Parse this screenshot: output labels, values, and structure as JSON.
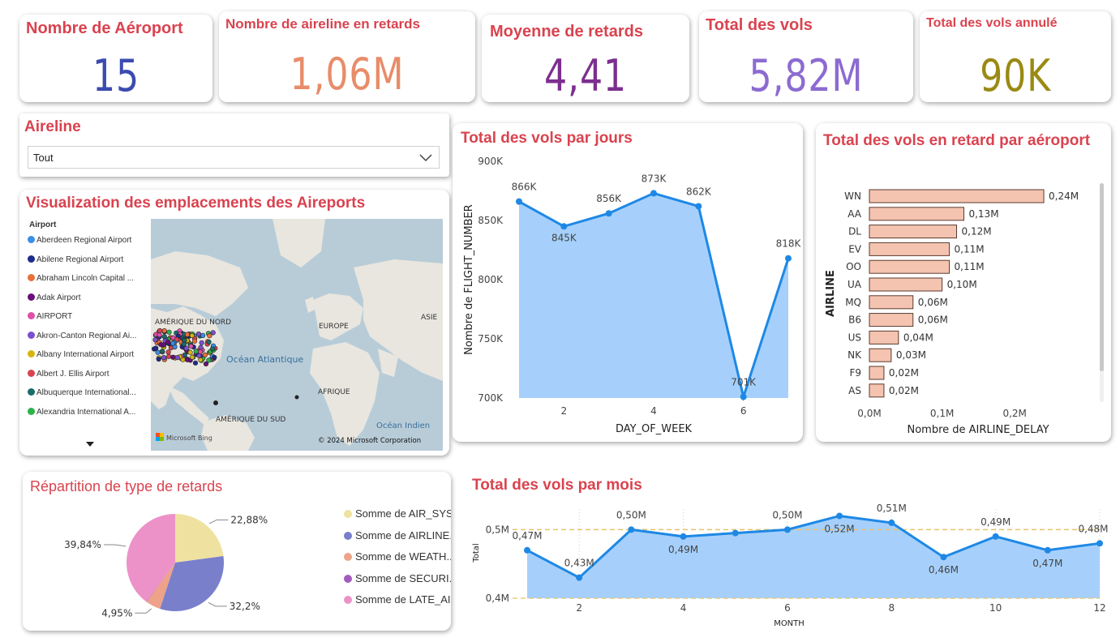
{
  "kpis": [
    {
      "title": "Nombre de Aéroport",
      "value": "15",
      "color": "#3b4bb0"
    },
    {
      "title": "Nombre de aireline en retards",
      "value": "1,06M",
      "color": "#e88c6a"
    },
    {
      "title": "Moyenne de retards",
      "value": "4,41",
      "color": "#7c2f8f"
    },
    {
      "title": "Total des vols",
      "value": "5,82M",
      "color": "#8c6bd1"
    },
    {
      "title": "Total des vols annulé",
      "value": "90K",
      "color": "#9a8a14"
    }
  ],
  "slicer": {
    "title": "Aireline",
    "selected": "Tout"
  },
  "map": {
    "title": "Visualization des emplacements des Aireports",
    "legend_title": "Airport",
    "legend": [
      {
        "label": "Aberdeen Regional Airport",
        "color": "#3a8ee6"
      },
      {
        "label": "Abilene Regional Airport",
        "color": "#1f2a8c"
      },
      {
        "label": "Abraham Lincoln Capital ...",
        "color": "#e8703a"
      },
      {
        "label": "Adak Airport",
        "color": "#6a0f7a"
      },
      {
        "label": "AIRPORT",
        "color": "#e04fa8"
      },
      {
        "label": "Akron-Canton Regional Ai...",
        "color": "#7b4fd1"
      },
      {
        "label": "Albany International Airport",
        "color": "#d9b40f"
      },
      {
        "label": "Albert J. Ellis Airport",
        "color": "#d9434f"
      },
      {
        "label": "Albuquerque International...",
        "color": "#1a6b6b"
      },
      {
        "label": "Alexandria International A...",
        "color": "#2bb34a"
      }
    ],
    "labels": {
      "na": "AMÉRIQUE DU NORD",
      "eu": "EUROPE",
      "asia": "ASIE",
      "atl": "Océan Atlantique",
      "af": "AFRIQUE",
      "sa": "AMÉRIQUE DU SUD",
      "ind": "Océan Indien",
      "bing": "Microsoft Bing",
      "copyright": "© 2024 Microsoft Corporation"
    }
  },
  "colors": {
    "title": "#d9434f",
    "area": "#a6d0fb",
    "line": "#1e88e5",
    "bar": "#f4c4b0",
    "bar_border": "#5a3a30",
    "ref": "#e8c26a"
  },
  "chart_data": [
    {
      "type": "area",
      "title": "Total des vols par jours",
      "xlabel": "DAY_OF_WEEK",
      "ylabel": "Nombre de FLIGHT_NUMBER",
      "x": [
        1,
        2,
        3,
        4,
        5,
        6,
        7
      ],
      "values": [
        866000,
        845000,
        856000,
        873000,
        862000,
        701000,
        818000
      ],
      "data_labels": [
        "866K",
        "845K",
        "856K",
        "873K",
        "862K",
        "701K",
        "818K"
      ],
      "ylim": [
        700000,
        900000
      ],
      "yticks": [
        "700K",
        "750K",
        "800K",
        "850K",
        "900K"
      ],
      "xticks": [
        "2",
        "4",
        "6"
      ],
      "grid": false
    },
    {
      "type": "bar",
      "orientation": "horizontal",
      "title": "Total des vols en retard par aéroport",
      "xlabel": "Nombre de AIRLINE_DELAY",
      "ylabel": "AIRLINE",
      "categories": [
        "WN",
        "AA",
        "DL",
        "EV",
        "OO",
        "UA",
        "MQ",
        "B6",
        "US",
        "NK",
        "F9",
        "AS"
      ],
      "values": [
        0.24,
        0.13,
        0.12,
        0.11,
        0.11,
        0.1,
        0.06,
        0.06,
        0.04,
        0.03,
        0.02,
        0.02
      ],
      "data_labels": [
        "0,24M",
        "0,13M",
        "0,12M",
        "0,11M",
        "0,11M",
        "0,10M",
        "0,06M",
        "0,06M",
        "0,04M",
        "0,03M",
        "0,02M",
        "0,02M"
      ],
      "xlim": [
        0,
        0.25
      ],
      "xticks": [
        "0,0M",
        "0,1M",
        "0,2M"
      ]
    },
    {
      "type": "pie",
      "title": "Répartition de type de retards",
      "categories": [
        "Somme de AIR_SYS...",
        "Somme de AIRLINE...",
        "Somme de WEATH...",
        "Somme de SECURI...",
        "Somme de LATE_AI..."
      ],
      "values": [
        22.88,
        32.2,
        4.95,
        0.13,
        39.84
      ],
      "data_labels": [
        "22,88%",
        "32,2%",
        "4,95%",
        "",
        "39,84%"
      ],
      "colors": [
        "#efe2a0",
        "#7a7fcc",
        "#eea28a",
        "#a35bbf",
        "#ec92c8"
      ]
    },
    {
      "type": "area",
      "title": "Total des vols par mois",
      "xlabel": "MONTH",
      "ylabel": "Total",
      "x": [
        1,
        2,
        3,
        4,
        5,
        6,
        7,
        8,
        9,
        10,
        11,
        12
      ],
      "values": [
        0.47,
        0.43,
        0.5,
        0.49,
        0.495,
        0.5,
        0.52,
        0.51,
        0.46,
        0.49,
        0.47,
        0.48
      ],
      "data_labels": [
        "0,47M",
        "0,43M",
        "0,50M",
        "0,49M",
        "",
        "0,50M",
        "0,52M",
        "0,51M",
        "0,46M",
        "0,49M",
        "0,47M",
        "0,48M"
      ],
      "ylim": [
        0.4,
        0.53
      ],
      "yticks": [
        "0,4M",
        "0,5M"
      ],
      "xticks": [
        "2",
        "4",
        "6",
        "8",
        "10",
        "12"
      ],
      "reference_line": 0.5
    }
  ]
}
